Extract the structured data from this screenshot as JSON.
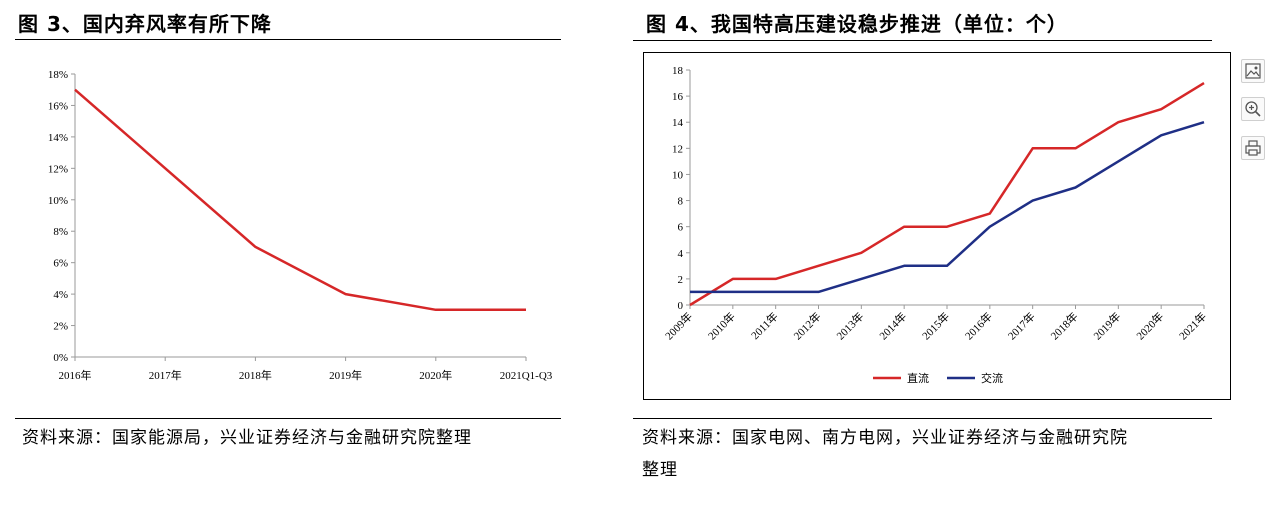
{
  "figure3": {
    "title": "图 3、国内弃风率有所下降",
    "source": "资料来源：国家能源局，兴业证券经济与金融研究院整理"
  },
  "figure4": {
    "title": "图 4、我国特高压建设稳步推进（单位：个）",
    "source_line1": "资料来源：国家电网、南方电网，兴业证券经济与金融研究院",
    "source_line2": "整理"
  },
  "toolbar": {
    "icons": [
      "image-icon",
      "zoom-in-icon",
      "print-icon"
    ]
  },
  "chart_data": [
    {
      "type": "line",
      "title": "图 3、国内弃风率有所下降",
      "categories": [
        "2016年",
        "2017年",
        "2018年",
        "2019年",
        "2020年",
        "2021Q1-Q3"
      ],
      "series": [
        {
          "values": [
            17,
            12,
            7,
            4,
            3,
            3
          ],
          "color": "#d62728"
        }
      ],
      "y_ticks": [
        "0%",
        "2%",
        "4%",
        "6%",
        "8%",
        "10%",
        "12%",
        "14%",
        "16%",
        "18%"
      ],
      "ylim": [
        0,
        18
      ],
      "unit": "%",
      "grid": false
    },
    {
      "type": "line",
      "title": "图 4、我国特高压建设稳步推进（单位：个）",
      "categories": [
        "2009年",
        "2010年",
        "2011年",
        "2012年",
        "2013年",
        "2014年",
        "2015年",
        "2016年",
        "2017年",
        "2018年",
        "2019年",
        "2020年",
        "2021年"
      ],
      "series": [
        {
          "name": "直流",
          "values": [
            0,
            2,
            2,
            3,
            4,
            6,
            6,
            7,
            12,
            12,
            14,
            15,
            17
          ],
          "color": "#d62728"
        },
        {
          "name": "交流",
          "values": [
            1,
            1,
            1,
            1,
            2,
            3,
            3,
            6,
            8,
            9,
            11,
            13,
            14
          ],
          "color": "#1f2f86"
        }
      ],
      "y_ticks": [
        "0",
        "2",
        "4",
        "6",
        "8",
        "10",
        "12",
        "14",
        "16",
        "18"
      ],
      "ylim": [
        0,
        18
      ],
      "legend": "bottom",
      "grid": false
    }
  ]
}
